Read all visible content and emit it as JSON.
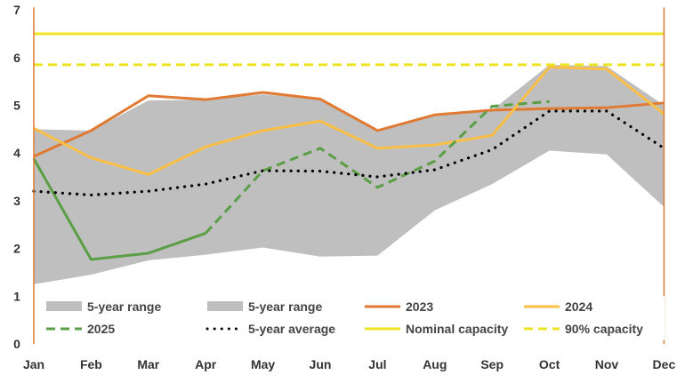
{
  "chart_data": {
    "type": "line",
    "categories": [
      "Jan",
      "Feb",
      "Mar",
      "Apr",
      "May",
      "Jun",
      "Jul",
      "Aug",
      "Sep",
      "Oct",
      "Nov",
      "Dec"
    ],
    "y_ticks": [
      "0",
      "1",
      "2",
      "3",
      "4",
      "5",
      "6",
      "7"
    ],
    "ylim": [
      0,
      7
    ],
    "grid": false,
    "legend_position": "bottom-inside",
    "range_band": {
      "name": "5-year range",
      "low": [
        1.25,
        1.45,
        1.75,
        1.87,
        2.02,
        1.83,
        1.85,
        2.8,
        3.35,
        4.05,
        3.97,
        2.87
      ],
      "high": [
        4.5,
        4.47,
        5.1,
        5.12,
        5.23,
        5.12,
        4.45,
        4.8,
        4.9,
        5.85,
        5.82,
        5.0
      ],
      "color": "#bfbfbf"
    },
    "series": [
      {
        "name": "2023",
        "color": "#e07a32",
        "style": "solid",
        "values": [
          3.93,
          4.47,
          5.2,
          5.12,
          5.27,
          5.13,
          4.47,
          4.8,
          4.9,
          4.93,
          4.95,
          5.05
        ]
      },
      {
        "name": "2024",
        "color": "#fbbf45",
        "style": "solid",
        "values": [
          4.52,
          3.9,
          3.55,
          4.13,
          4.47,
          4.67,
          4.1,
          4.17,
          4.37,
          5.8,
          5.76,
          4.82
        ]
      },
      {
        "name": "2025",
        "color": "#5a9e46",
        "style": "solid-then-dashed",
        "solid_until": "Apr",
        "values": [
          3.88,
          1.77,
          1.9,
          2.32,
          3.63,
          4.1,
          3.28,
          3.83,
          4.98,
          5.08,
          null,
          null
        ]
      },
      {
        "name": "5-year average",
        "color": "#000000",
        "style": "dotted",
        "values": [
          3.2,
          3.12,
          3.2,
          3.35,
          3.63,
          3.62,
          3.5,
          3.65,
          4.07,
          4.88,
          4.88,
          4.1
        ]
      },
      {
        "name": "Nominal capacity",
        "color": "#ede322",
        "style": "solid",
        "constant": 6.5
      },
      {
        "name": "90% capacity",
        "color": "#ede322",
        "style": "dashed",
        "constant": 5.85
      }
    ],
    "legend": [
      {
        "label": "5-year range",
        "kind": "box",
        "color": "#bfbfbf"
      },
      {
        "label": "5-year range",
        "kind": "box",
        "color": "#bfbfbf"
      },
      {
        "label": "2023",
        "kind": "line",
        "color": "#e07a32",
        "style": "solid"
      },
      {
        "label": "2024",
        "kind": "line",
        "color": "#fbbf45",
        "style": "solid"
      },
      {
        "label": "2025",
        "kind": "line",
        "color": "#5a9e46",
        "style": "dashed"
      },
      {
        "label": "5-year average",
        "kind": "line",
        "color": "#000000",
        "style": "dotted"
      },
      {
        "label": "Nominal capacity",
        "kind": "line",
        "color": "#ede322",
        "style": "solid"
      },
      {
        "label": "90% capacity",
        "kind": "line",
        "color": "#ede322",
        "style": "dashed"
      }
    ],
    "axis_line_color": "#e07a32"
  }
}
